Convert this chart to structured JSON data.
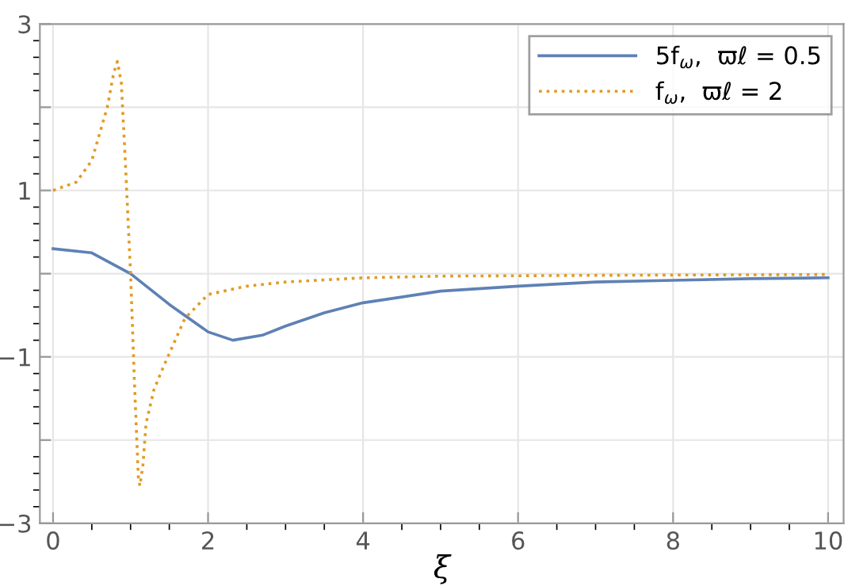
{
  "chart_data": {
    "type": "line",
    "xlabel": "ξ",
    "xlim": [
      -0.17,
      10.2
    ],
    "ylim": [
      -3,
      3
    ],
    "xticks": [
      0,
      2,
      4,
      6,
      8,
      10
    ],
    "yticks": [
      -3,
      {
        "value": -2,
        "label": null
      },
      -1,
      {
        "value": 0,
        "label": null
      },
      1,
      {
        "value": 2,
        "label": null
      },
      3
    ],
    "grid": true,
    "legend": "top right",
    "series": [
      {
        "name": "5f$_{ω}$,  ϖℓ = 0.5",
        "color": "#5e81b5",
        "line_style": "solid",
        "x": [
          0,
          0.5,
          1,
          1.5,
          2,
          2.32,
          2.7,
          3,
          3.5,
          4,
          5,
          6,
          7,
          8,
          9,
          10
        ],
        "values": [
          0.3,
          0.25,
          0,
          -0.37,
          -0.7,
          -0.8,
          -0.74,
          -0.63,
          -0.47,
          -0.35,
          -0.21,
          -0.15,
          -0.1,
          -0.08,
          -0.06,
          -0.05
        ]
      },
      {
        "name": "f$_{ω}$,  ϖℓ = 2",
        "color": "#e19c24",
        "line_style": "dotted",
        "x": [
          0,
          0.3,
          0.5,
          0.7,
          0.78,
          0.83,
          0.88,
          0.93,
          1,
          1.05,
          1.1,
          1.12,
          1.16,
          1.2,
          1.3,
          1.4,
          1.7,
          2,
          2.5,
          3,
          4,
          5,
          7,
          10
        ],
        "values": [
          1,
          1.1,
          1.36,
          2.0,
          2.4,
          2.55,
          2.3,
          1.4,
          0,
          -1.3,
          -2.44,
          -2.55,
          -2.3,
          -1.8,
          -1.4,
          -1.17,
          -0.54,
          -0.25,
          -0.15,
          -0.1,
          -0.05,
          -0.03,
          -0.02,
          -0.01
        ]
      }
    ]
  }
}
